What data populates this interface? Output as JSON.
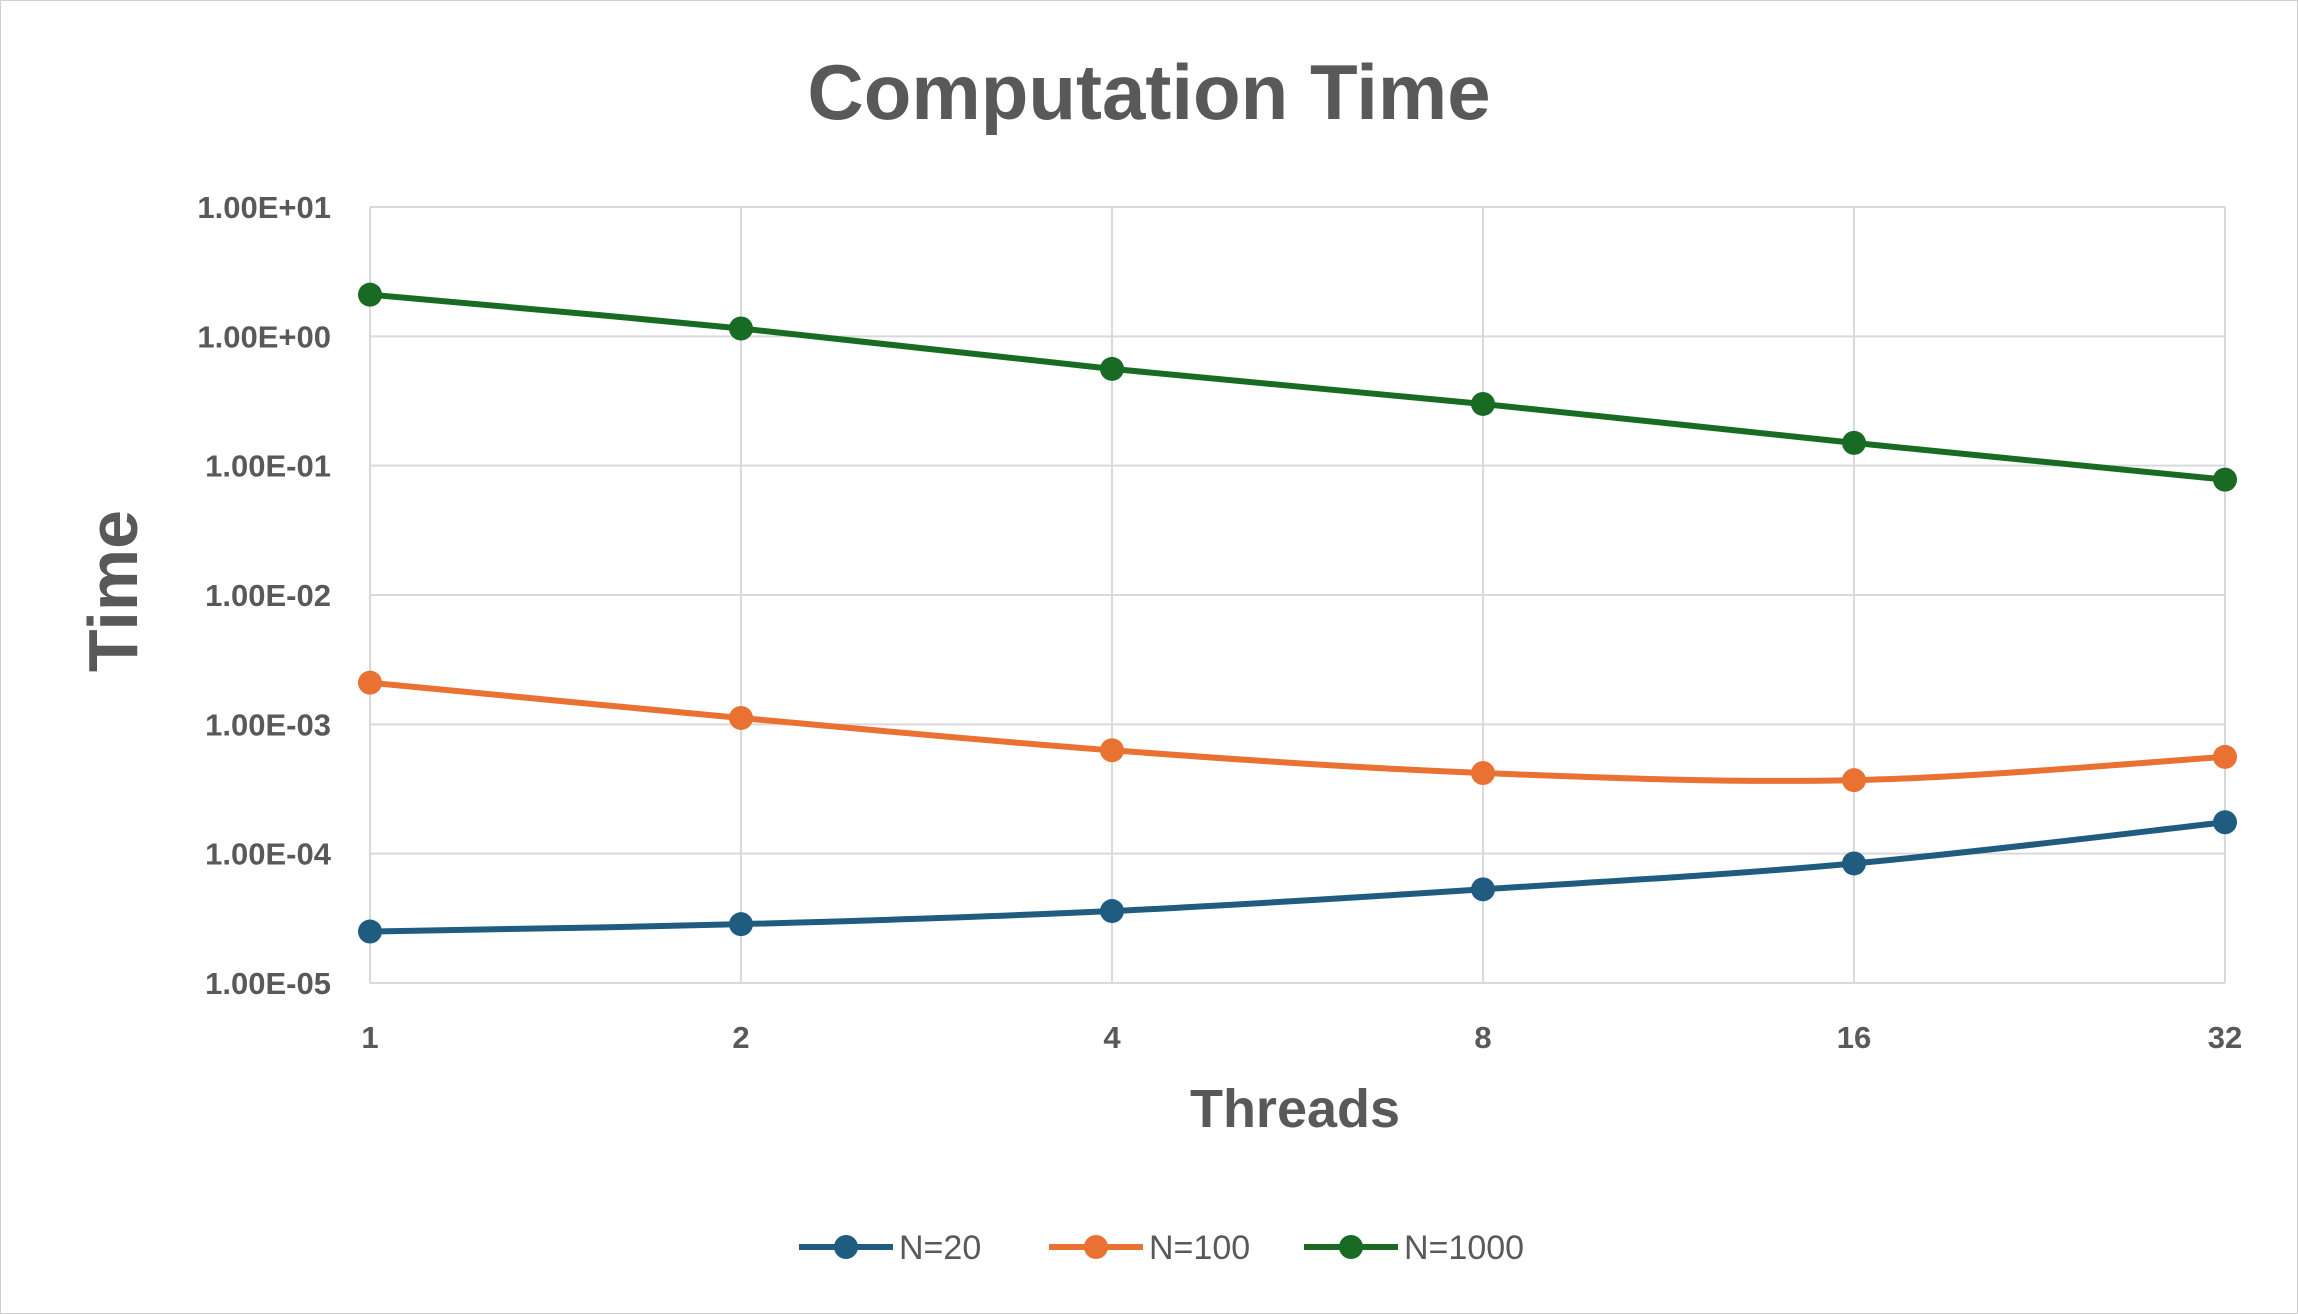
{
  "chart_data": {
    "type": "line",
    "title": "Computation Time",
    "xlabel": "Threads",
    "ylabel": "Time",
    "x_scale": "log2",
    "y_scale": "log10",
    "categories": [
      "1",
      "2",
      "4",
      "8",
      "16",
      "32"
    ],
    "x": [
      1,
      2,
      4,
      8,
      16,
      32
    ],
    "y_ticks": [
      "1.00E+01",
      "1.00E+00",
      "1.00E-01",
      "1.00E-02",
      "1.00E-03",
      "1.00E-04",
      "1.00E-05"
    ],
    "ylim": [
      1e-05,
      10
    ],
    "grid": true,
    "legend_position": "bottom",
    "series": [
      {
        "name": "N=20",
        "color": "#1f5c80",
        "values": [
          2.5e-05,
          2.85e-05,
          3.6e-05,
          5.3e-05,
          8.4e-05,
          0.000175
        ]
      },
      {
        "name": "N=100",
        "color": "#e97132",
        "values": [
          0.0021,
          0.00112,
          0.00063,
          0.00042,
          0.00037,
          0.00056
        ]
      },
      {
        "name": "N=1000",
        "color": "#196b24",
        "values": [
          2.1,
          1.15,
          0.56,
          0.3,
          0.15,
          0.078
        ]
      }
    ]
  }
}
